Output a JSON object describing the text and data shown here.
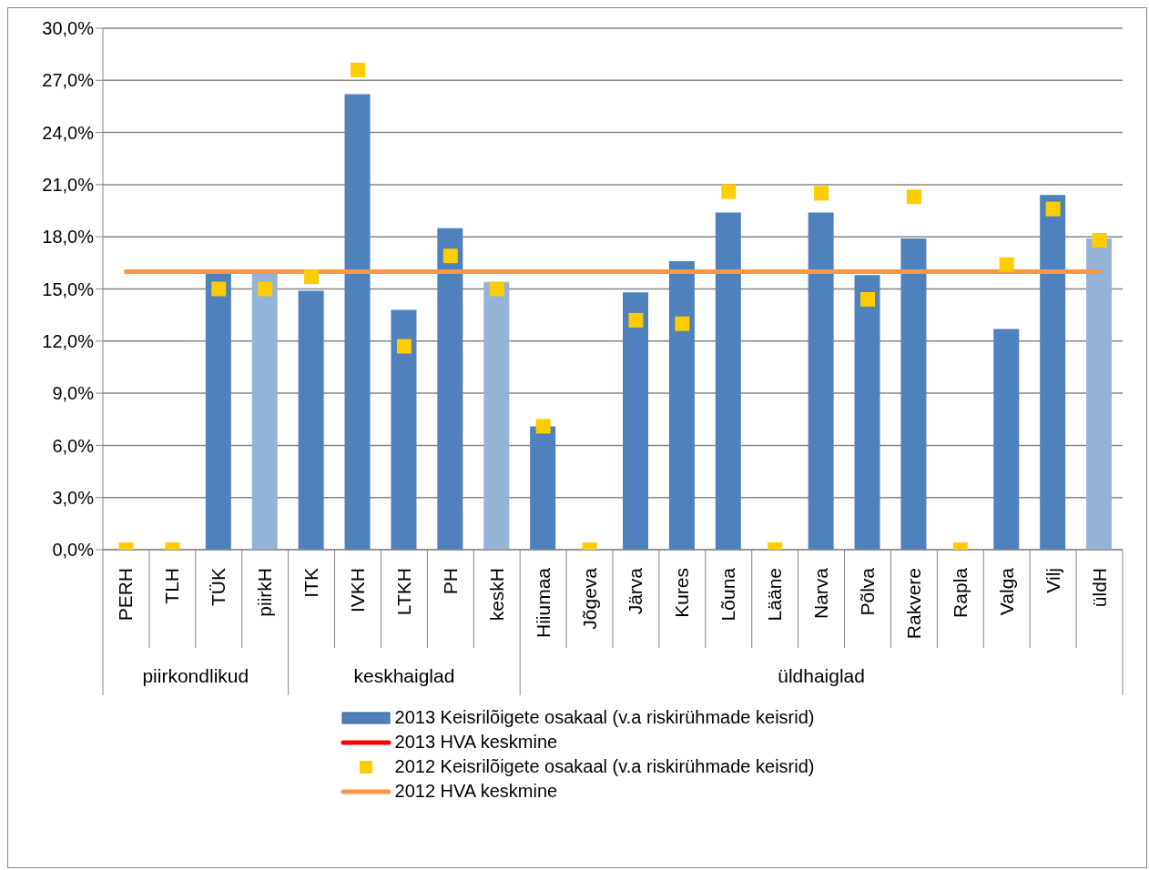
{
  "chart_data": {
    "type": "bar",
    "categories": [
      "PERH",
      "TLH",
      "TÜK",
      "piirkH",
      "ITK",
      "IVKH",
      "LTKH",
      "PH",
      "keskH",
      "Hiiumaa",
      "Jõgeva",
      "Järva",
      "Kures",
      "Lõuna",
      "Lääne",
      "Narva",
      "Põlva",
      "Rakvere",
      "Rapla",
      "Valga",
      "Vilj",
      "üldH"
    ],
    "series": [
      {
        "name": "2013 Keisrilõigete osakaal (v.a riskirühmade keisrid)",
        "color": "#4f81bd",
        "colors": [
          "#4f81bd",
          "#4f81bd",
          "#4f81bd",
          "#95b3d7",
          "#4f81bd",
          "#4f81bd",
          "#4f81bd",
          "#4f81bd",
          "#95b3d7",
          "#4f81bd",
          "#4f81bd",
          "#4f81bd",
          "#4f81bd",
          "#4f81bd",
          "#4f81bd",
          "#4f81bd",
          "#4f81bd",
          "#4f81bd",
          "#4f81bd",
          "#4f81bd",
          "#4f81bd",
          "#95b3d7"
        ],
        "values": [
          null,
          null,
          15.9,
          15.9,
          14.9,
          26.2,
          13.8,
          18.5,
          15.4,
          7.1,
          null,
          14.8,
          16.6,
          19.4,
          null,
          19.4,
          15.8,
          17.9,
          null,
          12.7,
          20.4,
          17.9
        ]
      },
      {
        "type": "line",
        "name": "2013 HVA keskmine",
        "color": "#ff0000",
        "values": [
          null,
          null,
          null,
          null,
          null,
          null,
          null,
          null,
          null,
          null,
          null,
          null,
          null,
          null,
          null,
          null,
          null,
          null,
          null,
          null,
          null,
          null
        ]
      },
      {
        "type": "scatter",
        "name": "2012 Keisrilõigete osakaal (v.a riskirühmade keisrid)",
        "color": "#ffcc00",
        "marker": "square",
        "values": [
          0,
          0,
          15.0,
          15.0,
          15.7,
          27.6,
          11.7,
          16.9,
          15.0,
          7.1,
          0,
          13.2,
          13.0,
          20.6,
          0,
          20.5,
          14.4,
          20.3,
          0,
          16.4,
          19.6,
          17.8
        ]
      },
      {
        "type": "line",
        "name": "2012 HVA keskmine",
        "color": "#f79646",
        "values": [
          16,
          16,
          16,
          16,
          16,
          16,
          16,
          16,
          16,
          16,
          16,
          16,
          16,
          16,
          16,
          16,
          16,
          16,
          16,
          16,
          16,
          16
        ]
      }
    ],
    "ylim": [
      0,
      30
    ],
    "yticks": [
      {
        "value": 0,
        "label": "0,0%"
      },
      {
        "value": 3,
        "label": "3,0%"
      },
      {
        "value": 6,
        "label": "6,0%"
      },
      {
        "value": 9,
        "label": "9,0%"
      },
      {
        "value": 12,
        "label": "12,0%"
      },
      {
        "value": 15,
        "label": "15,0%"
      },
      {
        "value": 18,
        "label": "18,0%"
      },
      {
        "value": 21,
        "label": "21,0%"
      },
      {
        "value": 24,
        "label": "24,0%"
      },
      {
        "value": 27,
        "label": "27,0%"
      },
      {
        "value": 30,
        "label": "30,0%"
      }
    ],
    "grid": "y",
    "legend": "bottom",
    "annotations": [
      "piirkondlikud",
      "keskhaiglad",
      "üldhaiglad"
    ]
  }
}
